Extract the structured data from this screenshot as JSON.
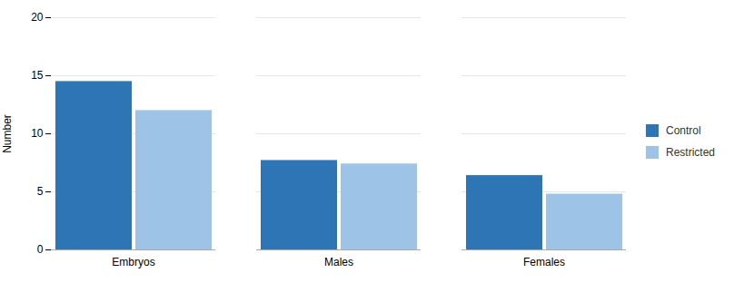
{
  "chart_data": {
    "type": "bar",
    "categories": [
      "Embryos",
      "Males",
      "Females"
    ],
    "series": [
      {
        "name": "Control",
        "color": "#2E75B6",
        "values": [
          14.5,
          7.7,
          6.4
        ]
      },
      {
        "name": "Restricted",
        "color": "#9DC3E6",
        "values": [
          12.0,
          7.4,
          4.8
        ]
      }
    ],
    "ylabel": "Number",
    "ylim": [
      0,
      20
    ],
    "yticks": [
      0,
      5,
      10,
      15,
      20
    ],
    "grid": true,
    "legend": "right"
  }
}
